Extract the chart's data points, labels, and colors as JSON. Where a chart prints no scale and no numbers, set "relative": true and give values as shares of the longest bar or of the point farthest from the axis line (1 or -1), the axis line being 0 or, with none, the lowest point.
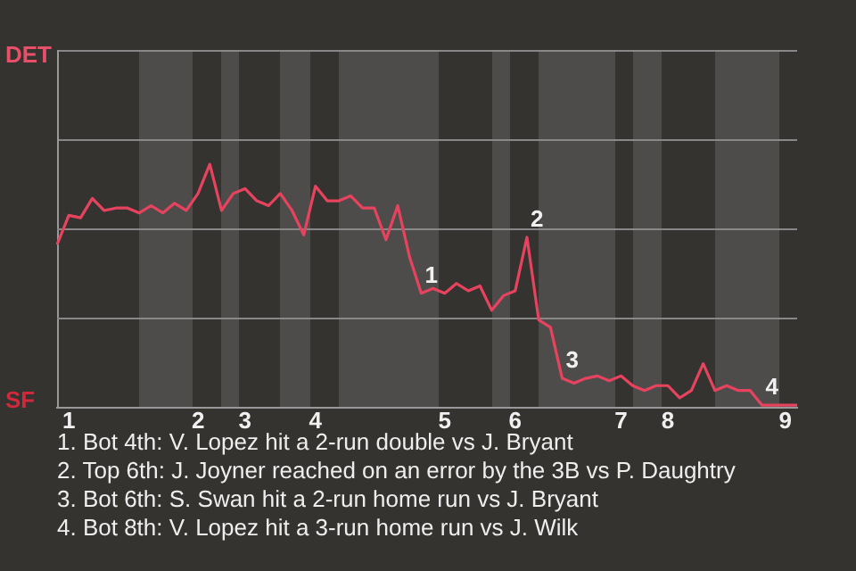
{
  "chart_data": {
    "type": "line",
    "relative": true,
    "categories": [
      null,
      "1",
      null,
      null,
      null,
      null,
      null,
      null,
      null,
      null,
      null,
      null,
      "2",
      null,
      null,
      null,
      "3",
      null,
      null,
      null,
      null,
      null,
      "4",
      null,
      null,
      null,
      null,
      null,
      null,
      null,
      null,
      null,
      null,
      "5",
      null,
      null,
      null,
      null,
      null,
      "6",
      null,
      null,
      null,
      null,
      null,
      null,
      null,
      null,
      "7",
      null,
      null,
      null,
      "8",
      null,
      null,
      null,
      null,
      null,
      null,
      null,
      null,
      null,
      "9",
      null
    ],
    "series": [
      {
        "color": "#e8435e",
        "values": [
          0.67,
          0.79,
          0.78,
          0.86,
          0.81,
          0.82,
          0.82,
          0.8,
          0.83,
          0.8,
          0.84,
          0.81,
          0.88,
          1,
          0.81,
          0.88,
          0.9,
          0.85,
          0.83,
          0.88,
          0.81,
          0.71,
          0.91,
          0.85,
          0.85,
          0.87,
          0.82,
          0.82,
          0.69,
          0.83,
          0.62,
          0.47,
          0.49,
          0.47,
          0.51,
          0.48,
          0.5,
          0.4,
          0.46,
          0.48,
          0.7,
          0.36,
          0.33,
          0.12,
          0.1,
          0.12,
          0.13,
          0.11,
          0.13,
          0.09,
          0.07,
          0.09,
          0.09,
          0.04,
          0.07,
          0.18,
          0.07,
          0.09,
          0.07,
          0.07,
          0.01,
          0.01,
          0.01,
          0.01
        ]
      }
    ],
    "marker": "none",
    "line_style": "solid",
    "ref_lines": [
      {
        "axis": "y",
        "value": 0.735,
        "color": "#888888"
      },
      {
        "axis": "y",
        "value": 0.368,
        "color": "#888888"
      }
    ],
    "annotations": [
      "DET",
      "SF",
      {
        "text": "1",
        "y": 0.47
      },
      {
        "text": "2",
        "y": 0.7
      },
      {
        "text": "3",
        "y": 0.12
      },
      {
        "text": "4",
        "y": 0.01
      },
      "1. Bot 4th: V. Lopez hit a 2-run double vs J. Bryant",
      "2. Top 6th: J. Joyner reached on an error by the 3B vs P. Daughtry",
      "3. Bot 6th: S. Swan hit a 2-run home run vs J. Bryant",
      "4. Bot 8th: V. Lopez hit a 3-run home run vs J. Wilk"
    ]
  }
}
